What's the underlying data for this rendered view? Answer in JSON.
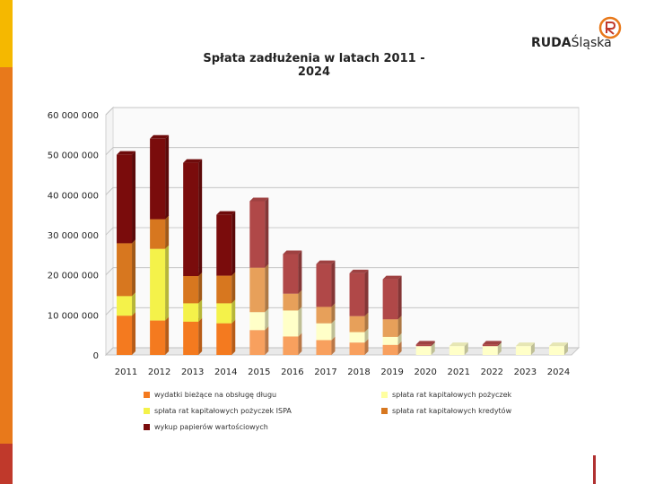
{
  "logo": {
    "name_bold": "RUDA",
    "name_rest": "Śląska"
  },
  "colors": {
    "wydatki": "#f47a1f",
    "pozyczki": "#ffffa0",
    "ispa": "#f4f24a",
    "kredyty": "#d7771f",
    "papiery": "#7a0c0c",
    "wydatki_light": "#f8a05e",
    "pozyczki_light": "#ffffc8",
    "ispa_light": "#f7f58a",
    "kredyty_light": "#e7a05a",
    "papiery_light": "#b04848"
  },
  "chart_data": {
    "type": "bar",
    "stacked": true,
    "title": "Spłata zadłużenia w latach 2011 - 2024",
    "categories": [
      "2011",
      "2012",
      "2013",
      "2014",
      "2015",
      "2016",
      "2017",
      "2018",
      "2019",
      "2020",
      "2021",
      "2022",
      "2023",
      "2024"
    ],
    "ylim": [
      0,
      60000000
    ],
    "yticks": [
      "0",
      "10 000 000",
      "20 000 000",
      "30 000 000",
      "40 000 000",
      "50 000 000",
      "60 000 000"
    ],
    "grid": true,
    "series": [
      {
        "key": "wydatki",
        "name": "wydatki bieżące na obsługę długu",
        "values": [
          9800000,
          8600000,
          8300000,
          7900000,
          6200000,
          4600000,
          3700000,
          3100000,
          2500000,
          0,
          0,
          0,
          0,
          0
        ]
      },
      {
        "key": "pozyczki",
        "name": "spłata rat kapitałowych pożyczek",
        "values": [
          0,
          0,
          0,
          0,
          4500000,
          6500000,
          4200000,
          2600000,
          2000000,
          2200000,
          2200000,
          2200000,
          2200000,
          2200000
        ]
      },
      {
        "key": "ispa",
        "name": "spłata rat kapitałowych pożyczek ISPA",
        "values": [
          4900000,
          17900000,
          4600000,
          5000000,
          0,
          0,
          0,
          0,
          0,
          0,
          0,
          0,
          0,
          0
        ]
      },
      {
        "key": "kredyty",
        "name": "spłata rat kapitałowych kredytów",
        "values": [
          13200000,
          7400000,
          6800000,
          6900000,
          11100000,
          4200000,
          4100000,
          4000000,
          4400000,
          0,
          0,
          0,
          0,
          0
        ]
      },
      {
        "key": "papiery",
        "name": "wykup papierów wartościowych",
        "values": [
          22100000,
          20100000,
          28300000,
          15200000,
          16600000,
          9900000,
          10700000,
          10700000,
          10000000,
          400000,
          0,
          400000,
          0,
          0
        ]
      }
    ],
    "projection_from_index": 4,
    "legend_position": "bottom"
  }
}
